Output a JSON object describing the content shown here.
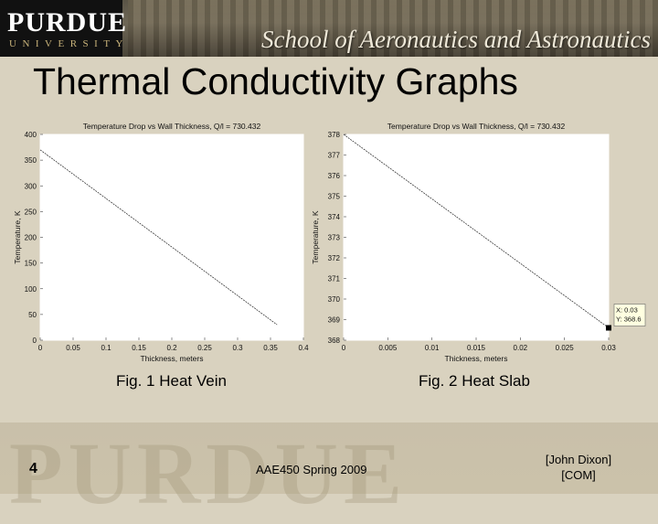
{
  "header": {
    "logo_main": "PURDUE",
    "logo_sub": "UNIVERSITY",
    "school": "School of Aeronautics and Astronautics"
  },
  "slide": {
    "title": "Thermal Conductivity Graphs",
    "fig1_caption": "Fig. 1 Heat Vein",
    "fig2_caption": "Fig. 2 Heat Slab"
  },
  "footer": {
    "slide_number": "4",
    "course": "AAE450 Spring 2009",
    "author": "[John Dixon]",
    "group": "[COM]",
    "watermark": "PURDUE"
  },
  "chart_data": [
    {
      "type": "line",
      "title": "Temperature Drop vs Wall Thickness, Q/l = 730.432",
      "xlabel": "Thickness, meters",
      "ylabel": "Temperature, K",
      "xlim": [
        0,
        0.4
      ],
      "ylim": [
        0,
        400
      ],
      "xticks": [
        "0",
        "0.05",
        "0.1",
        "0.15",
        "0.2",
        "0.25",
        "0.3",
        "0.35",
        "0.4"
      ],
      "yticks": [
        "0",
        "50",
        "100",
        "150",
        "200",
        "250",
        "300",
        "350",
        "400"
      ],
      "series": [
        {
          "x": [
            0,
            0.36
          ],
          "y": [
            370,
            30
          ]
        }
      ]
    },
    {
      "type": "line",
      "title": "Temperature Drop vs Wall Thickness, Q/l = 730.432",
      "xlabel": "Thickness, meters",
      "ylabel": "Temperature, K",
      "xlim": [
        0,
        0.03
      ],
      "ylim": [
        368,
        378
      ],
      "xticks": [
        "0",
        "0.005",
        "0.01",
        "0.015",
        "0.02",
        "0.025",
        "0.03"
      ],
      "yticks": [
        "368",
        "369",
        "370",
        "371",
        "372",
        "373",
        "374",
        "375",
        "376",
        "377",
        "378"
      ],
      "series": [
        {
          "x": [
            0,
            0.03
          ],
          "y": [
            378,
            368.6
          ]
        }
      ],
      "annotation": {
        "x": 0.03,
        "y": 368.6,
        "lines": [
          "X: 0.03",
          "Y: 368.6"
        ]
      }
    }
  ]
}
